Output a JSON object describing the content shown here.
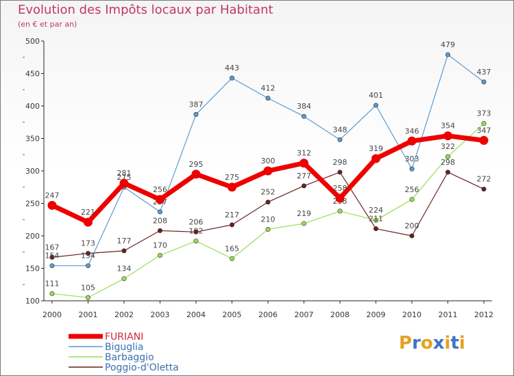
{
  "header": {
    "title": "Evolution des Impôts locaux par Habitant",
    "subtitle": "(en € et par an)"
  },
  "logo": {
    "text": "Proxiti",
    "letters": [
      "P",
      "r",
      "o",
      "x",
      "i",
      "t",
      "i"
    ],
    "colors": [
      "#e8a020",
      "#3a76c8",
      "#e8a020",
      "#3a76c8",
      "#e8a020",
      "#3a76c8",
      "#e8a020"
    ]
  },
  "chart_data": {
    "type": "line",
    "title": "Evolution des Impôts locaux par Habitant",
    "subtitle": "(en € et par an)",
    "xlabel": "",
    "ylabel": "",
    "categories": [
      "2000",
      "2001",
      "2002",
      "2003",
      "2004",
      "2005",
      "2006",
      "2007",
      "2008",
      "2009",
      "2010",
      "2011",
      "2012"
    ],
    "ylim": [
      100,
      500
    ],
    "yticks": [
      100,
      150,
      200,
      250,
      300,
      350,
      400,
      450,
      500
    ],
    "grid": false,
    "legend_position": "bottom-left",
    "series": [
      {
        "name": "Barbaggio",
        "color": "#99dd55",
        "values": [
          111,
          105,
          134,
          170,
          192,
          165,
          210,
          219,
          238,
          224,
          256,
          322,
          373
        ],
        "labels": [
          "111",
          "105",
          "134",
          "170",
          "192",
          "165",
          "210",
          "219",
          "238",
          "224",
          "256",
          "322",
          "373"
        ]
      },
      {
        "name": "Poggio-d'Oletta",
        "color": "#6b1f1f",
        "values": [
          167,
          173,
          177,
          208,
          206,
          217,
          252,
          277,
          298,
          211,
          200,
          298,
          272
        ],
        "labels": [
          "167",
          "173",
          "177",
          "208",
          "206",
          "217",
          "252",
          "277",
          "298",
          "211",
          "200",
          "298",
          "272"
        ]
      },
      {
        "name": "Biguglia",
        "color": "#5a9ad0",
        "values": [
          154,
          154,
          275,
          237,
          387,
          443,
          412,
          384,
          348,
          401,
          303,
          479,
          437
        ],
        "labels": [
          "154",
          "154",
          "275",
          "237",
          "387",
          "443",
          "412",
          "384",
          "348",
          "401",
          "303",
          "479",
          "437"
        ]
      },
      {
        "name": "FURIANI",
        "color": "#ee0000",
        "values": [
          247,
          221,
          281,
          256,
          295,
          275,
          300,
          312,
          258,
          319,
          346,
          354,
          347
        ],
        "labels": [
          "247",
          "221",
          "281",
          "256",
          "295",
          "275",
          "300",
          "312",
          "258",
          "319",
          "346",
          "354",
          "347"
        ]
      }
    ],
    "legend": [
      "FURIANI",
      "Biguglia",
      "Barbaggio",
      "Poggio-d'Oletta"
    ]
  }
}
